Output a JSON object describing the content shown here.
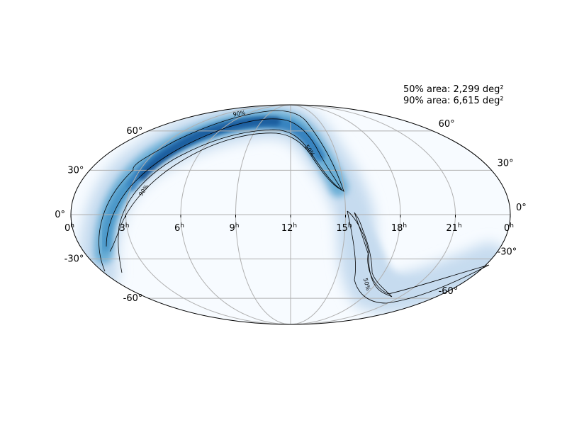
{
  "annotations": {
    "area_50": "50% area: 2,299 deg²",
    "area_90": "90% area: 6,615 deg²"
  },
  "map": {
    "projection": "mollweide",
    "colormap": "Blues",
    "ra_ticks": [
      {
        "hours": 24,
        "label": "0",
        "sup": "h"
      },
      {
        "hours": 21,
        "label": "21",
        "sup": "h"
      },
      {
        "hours": 18,
        "label": "18",
        "sup": "h"
      },
      {
        "hours": 15,
        "label": "15",
        "sup": "h"
      },
      {
        "hours": 12,
        "label": "12",
        "sup": "h"
      },
      {
        "hours": 9,
        "label": "9",
        "sup": "h"
      },
      {
        "hours": 6,
        "label": "6",
        "sup": "h"
      },
      {
        "hours": 3,
        "label": "3",
        "sup": "h"
      },
      {
        "hours": 0,
        "label": "0",
        "sup": "h"
      }
    ],
    "dec_ticks": [
      {
        "deg": 60,
        "label": "60°"
      },
      {
        "deg": 30,
        "label": "30°"
      },
      {
        "deg": 0,
        "label": "0°"
      },
      {
        "deg": -30,
        "label": "-30°"
      },
      {
        "deg": -60,
        "label": "-60°"
      }
    ],
    "contour_labels": {
      "c90": "90%",
      "c50": "50%"
    },
    "grid": true,
    "colors": {
      "background_fill": "#f7fbff",
      "deep": "#08306b",
      "mid": "#4292c6",
      "light": "#c6dbef",
      "grid": "#b0b0b0",
      "contour": "#000000"
    }
  }
}
